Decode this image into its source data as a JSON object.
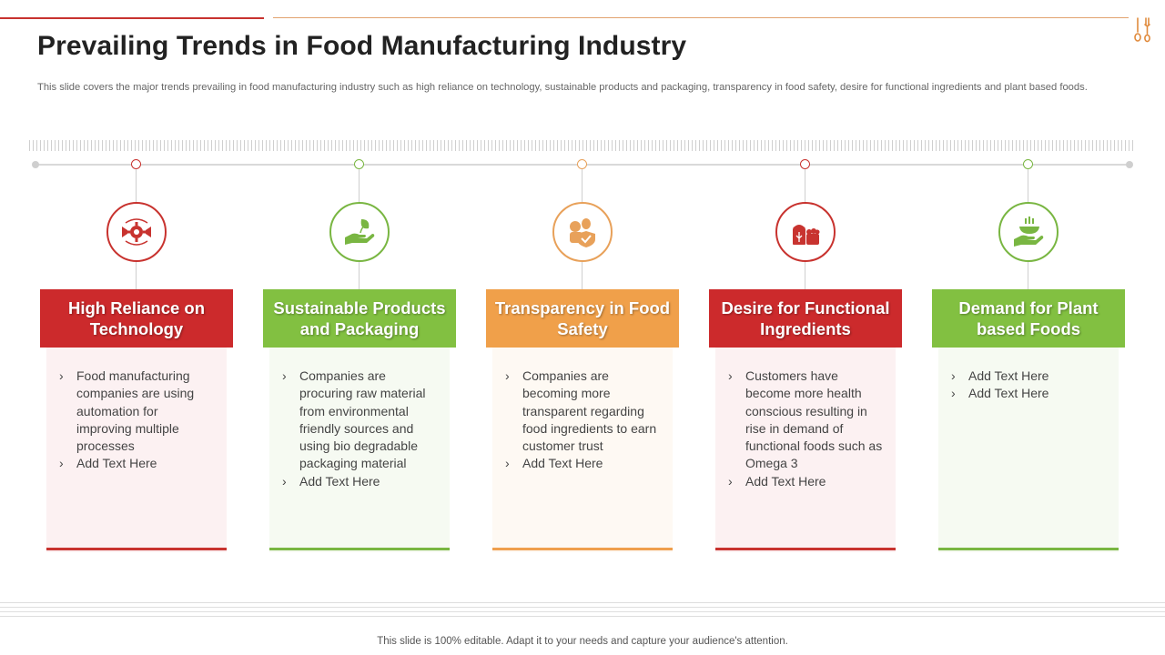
{
  "slide": {
    "title": "Prevailing Trends in Food Manufacturing Industry",
    "subtitle": "This slide covers the major trends prevailing in food manufacturing industry such as high reliance on technology,  sustainable products and packaging, transparency in food safety, desire for functional ingredients and plant based foods.",
    "footer": "This slide is 100% editable. Adapt it to your needs and capture your audience's attention.",
    "corner_icon": "fork-spoon-icon"
  },
  "colors": {
    "red": "#cc2a2c",
    "green": "#82c041",
    "orange": "#f0a04a"
  },
  "trends": [
    {
      "heading": "High Reliance on Technology",
      "icon": "gear-conveyor-icon",
      "bullets": [
        "Food manufacturing companies are using automation for improving multiple processes",
        "Add Text Here"
      ]
    },
    {
      "heading": "Sustainable Products and Packaging",
      "icon": "hand-leaf-icon",
      "bullets": [
        "Companies are procuring raw material from environmental friendly sources and using bio degradable packaging material",
        "Add Text Here"
      ]
    },
    {
      "heading": "Transparency in Food Safety",
      "icon": "food-shield-icon",
      "bullets": [
        "Companies are becoming more transparent regarding food ingredients to earn customer trust",
        "Add Text Here"
      ]
    },
    {
      "heading": "Desire for Functional Ingredients",
      "icon": "grain-basket-icon",
      "bullets": [
        "Customers have become more health conscious resulting in rise in demand of functional foods such as Omega 3",
        "Add Text Here"
      ]
    },
    {
      "heading": "Demand for Plant based Foods",
      "icon": "hand-bowl-icon",
      "bullets": [
        "Add Text Here",
        "Add Text Here"
      ]
    }
  ]
}
